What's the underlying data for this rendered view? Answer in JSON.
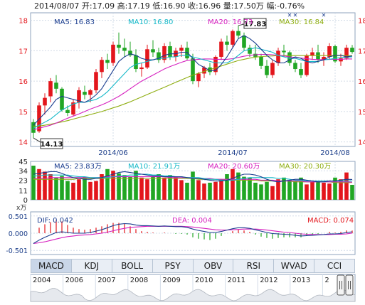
{
  "header": {
    "date": "2014/08/07",
    "open_label": "开:",
    "open": "17.09",
    "high_label": "高:",
    "high": "17.19",
    "low_label": "低:",
    "low": "16.90",
    "close_label": "收:",
    "close": "16.96",
    "volume_label": "量:",
    "volume": "17.50万",
    "change_label": "幅:",
    "change": "-0.76%"
  },
  "price_ma_legend": [
    {
      "label": "MA5:",
      "value": "16.83",
      "color": "#1a3d8f"
    },
    {
      "label": "MA10:",
      "value": "16.80",
      "color": "#14b8c8"
    },
    {
      "label": "MA20:",
      "value": "16.73",
      "color": "#d61fbf"
    },
    {
      "label": "MA30:",
      "value": "16.84",
      "color": "#8fae12"
    }
  ],
  "volume_ma_legend": [
    {
      "label": "MA5:",
      "value": "23.83万",
      "color": "#1a3d8f"
    },
    {
      "label": "MA10:",
      "value": "21.91万",
      "color": "#14b8c8"
    },
    {
      "label": "MA20:",
      "value": "20.60万",
      "color": "#d61fbf"
    },
    {
      "label": "MA30:",
      "value": "20.30万",
      "color": "#8fae12"
    }
  ],
  "macd_legend": {
    "dif_label": "DIF:",
    "dif": "0.042",
    "dea_label": "DEA:",
    "dea": "0.004",
    "macd_label": "MACD:",
    "macd": "0.074"
  },
  "annotations": {
    "max_label": "17.83",
    "min_label": "14.13"
  },
  "volume_unit": "x万",
  "tabs": [
    "MACD",
    "KDJ",
    "BOLL",
    "PSY",
    "OBV",
    "RSI",
    "WVAD",
    "CCI"
  ],
  "active_tab": "MACD",
  "navigator_years": [
    "2004",
    "2006",
    "2007",
    "2008",
    "2009",
    "2010",
    "2011",
    "2012",
    "2013",
    "2"
  ],
  "colors": {
    "up": "#e3161c",
    "down": "#21a624",
    "grid": "#d3dce8",
    "frame": "#8fa3bd",
    "axis_text": "#1d3f8a"
  },
  "chart_data": [
    {
      "type": "candlestick",
      "x_tick_labels": [
        "2014/06",
        "2014/07",
        "2014/08"
      ],
      "y_ticks": [
        14,
        15,
        16,
        17,
        18
      ],
      "ylim": [
        13.85,
        18.25
      ],
      "ohlc": [
        [
          14.65,
          14.75,
          14.13,
          14.3
        ],
        [
          14.35,
          15.3,
          14.3,
          15.2
        ],
        [
          15.2,
          15.6,
          14.9,
          15.45
        ],
        [
          15.5,
          16.1,
          15.3,
          16.0
        ],
        [
          15.95,
          16.2,
          15.6,
          15.75
        ],
        [
          15.75,
          15.8,
          15.0,
          15.05
        ],
        [
          15.05,
          15.2,
          14.85,
          14.95
        ],
        [
          14.9,
          15.4,
          14.85,
          15.3
        ],
        [
          15.3,
          15.8,
          15.1,
          15.7
        ],
        [
          15.65,
          15.85,
          15.4,
          15.55
        ],
        [
          15.55,
          15.75,
          15.3,
          15.7
        ],
        [
          15.7,
          16.4,
          15.6,
          16.3
        ],
        [
          16.3,
          16.8,
          16.1,
          16.7
        ],
        [
          16.7,
          16.9,
          16.4,
          16.6
        ],
        [
          16.6,
          17.3,
          16.5,
          17.2
        ],
        [
          17.2,
          17.6,
          16.9,
          17.1
        ],
        [
          17.1,
          17.4,
          16.8,
          17.0
        ],
        [
          17.0,
          17.3,
          16.8,
          16.85
        ],
        [
          16.85,
          17.05,
          16.3,
          16.4
        ],
        [
          16.4,
          16.6,
          16.15,
          16.45
        ],
        [
          16.45,
          17.2,
          16.4,
          17.05
        ],
        [
          17.05,
          17.35,
          16.8,
          16.95
        ],
        [
          16.95,
          17.1,
          16.6,
          16.7
        ],
        [
          16.7,
          17.25,
          16.6,
          17.15
        ],
        [
          17.15,
          17.3,
          16.7,
          16.8
        ],
        [
          16.8,
          17.1,
          16.65,
          17.0
        ],
        [
          17.0,
          17.2,
          16.8,
          17.1
        ],
        [
          17.1,
          17.3,
          16.7,
          16.75
        ],
        [
          16.75,
          16.9,
          15.9,
          16.0
        ],
        [
          16.0,
          16.3,
          15.8,
          16.25
        ],
        [
          16.25,
          16.5,
          16.1,
          16.45
        ],
        [
          16.45,
          16.6,
          16.2,
          16.3
        ],
        [
          16.3,
          16.85,
          16.2,
          16.8
        ],
        [
          16.8,
          17.4,
          16.7,
          17.3
        ],
        [
          17.3,
          17.5,
          17.0,
          17.2
        ],
        [
          17.2,
          17.7,
          17.1,
          17.65
        ],
        [
          17.65,
          17.83,
          17.4,
          17.5
        ],
        [
          17.5,
          17.6,
          17.0,
          17.1
        ],
        [
          17.1,
          17.2,
          16.8,
          16.9
        ],
        [
          16.9,
          17.2,
          16.7,
          16.8
        ],
        [
          16.8,
          16.9,
          16.4,
          16.5
        ],
        [
          16.5,
          16.7,
          16.1,
          16.2
        ],
        [
          16.2,
          16.7,
          16.1,
          16.6
        ],
        [
          16.6,
          17.1,
          16.5,
          17.0
        ],
        [
          17.0,
          17.2,
          16.8,
          16.95
        ],
        [
          16.95,
          17.0,
          16.5,
          16.6
        ],
        [
          16.6,
          16.7,
          16.3,
          16.4
        ],
        [
          16.4,
          16.6,
          16.1,
          16.2
        ],
        [
          16.2,
          16.9,
          16.15,
          16.85
        ],
        [
          16.85,
          17.1,
          16.7,
          16.95
        ],
        [
          16.95,
          17.2,
          16.6,
          16.7
        ],
        [
          16.7,
          16.95,
          16.5,
          16.8
        ],
        [
          16.8,
          17.25,
          16.7,
          17.15
        ],
        [
          17.15,
          17.2,
          16.6,
          16.65
        ],
        [
          16.65,
          16.9,
          16.5,
          16.75
        ],
        [
          16.75,
          17.2,
          16.7,
          17.1
        ],
        [
          17.1,
          17.19,
          16.9,
          16.96
        ]
      ],
      "ma5": [
        14.55,
        14.75,
        14.95,
        15.15,
        15.4,
        15.5,
        15.45,
        15.4,
        15.35,
        15.3,
        15.4,
        15.55,
        15.75,
        16.05,
        16.35,
        16.65,
        16.8,
        16.9,
        16.85,
        16.75,
        16.7,
        16.7,
        16.75,
        16.85,
        16.9,
        16.9,
        16.95,
        16.95,
        16.75,
        16.55,
        16.45,
        16.35,
        16.35,
        16.55,
        16.8,
        17.1,
        17.4,
        17.5,
        17.4,
        17.25,
        17.05,
        16.85,
        16.7,
        16.6,
        16.6,
        16.7,
        16.8,
        16.75,
        16.65,
        16.6,
        16.65,
        16.7,
        16.8,
        16.85,
        16.85,
        16.8,
        16.83
      ],
      "ma10": [
        14.45,
        14.55,
        14.65,
        14.75,
        14.9,
        15.05,
        15.15,
        15.25,
        15.3,
        15.3,
        15.35,
        15.4,
        15.5,
        15.65,
        15.85,
        16.05,
        16.25,
        16.45,
        16.55,
        16.6,
        16.65,
        16.7,
        16.75,
        16.75,
        16.8,
        16.8,
        16.85,
        16.85,
        16.8,
        16.75,
        16.7,
        16.65,
        16.6,
        16.6,
        16.6,
        16.7,
        16.85,
        17.0,
        17.05,
        17.1,
        17.05,
        17.0,
        16.95,
        16.85,
        16.8,
        16.75,
        16.75,
        16.7,
        16.65,
        16.65,
        16.65,
        16.7,
        16.72,
        16.75,
        16.78,
        16.79,
        16.8
      ],
      "ma20": [
        14.4,
        14.45,
        14.5,
        14.55,
        14.62,
        14.7,
        14.78,
        14.85,
        14.92,
        15.0,
        15.08,
        15.15,
        15.22,
        15.3,
        15.4,
        15.5,
        15.62,
        15.75,
        15.88,
        16.0,
        16.1,
        16.2,
        16.3,
        16.4,
        16.48,
        16.55,
        16.62,
        16.68,
        16.7,
        16.72,
        16.73,
        16.73,
        16.72,
        16.72,
        16.72,
        16.74,
        16.78,
        16.82,
        16.85,
        16.87,
        16.88,
        16.88,
        16.87,
        16.85,
        16.83,
        16.8,
        16.78,
        16.76,
        16.74,
        16.72,
        16.71,
        16.71,
        16.72,
        16.72,
        16.72,
        16.73,
        16.73
      ],
      "ma30": [
        14.5,
        14.52,
        14.55,
        14.58,
        14.62,
        14.66,
        14.7,
        14.75,
        14.8,
        14.85,
        14.9,
        14.95,
        15.0,
        15.06,
        15.12,
        15.18,
        15.25,
        15.32,
        15.4,
        15.48,
        15.56,
        15.64,
        15.72,
        15.8,
        15.88,
        15.96,
        16.04,
        16.12,
        16.2,
        16.26,
        16.32,
        16.38,
        16.44,
        16.5,
        16.56,
        16.62,
        16.68,
        16.72,
        16.76,
        16.79,
        16.81,
        16.82,
        16.83,
        16.84,
        16.84,
        16.84,
        16.84,
        16.84,
        16.84,
        16.84,
        16.84,
        16.84,
        16.84,
        16.84,
        16.84,
        16.84,
        16.84
      ],
      "marker_x_indices": [
        45,
        46,
        51
      ]
    },
    {
      "type": "bar",
      "y_ticks": [
        0,
        11,
        23,
        34,
        45
      ],
      "ylim": [
        0,
        45
      ],
      "values": [
        40,
        36,
        33,
        30,
        26,
        28,
        22,
        20,
        24,
        27,
        21,
        22,
        30,
        36,
        34,
        31,
        29,
        27,
        34,
        26,
        24,
        27,
        30,
        26,
        29,
        27,
        23,
        20,
        33,
        23,
        19,
        20,
        21,
        24,
        30,
        36,
        32,
        27,
        26,
        20,
        18,
        21,
        16,
        24,
        26,
        23,
        22,
        26,
        18,
        21,
        22,
        20,
        19,
        26,
        24,
        32,
        17.5
      ],
      "ma5": [
        30,
        31,
        32,
        33,
        33,
        31,
        28,
        26,
        25,
        24,
        24,
        25,
        26,
        28,
        30,
        32,
        33,
        32,
        31,
        30,
        29,
        28,
        28,
        27,
        27,
        27,
        27,
        26,
        25,
        25,
        24,
        23,
        22,
        22,
        23,
        25,
        28,
        30,
        30,
        29,
        27,
        24,
        22,
        21,
        22,
        23,
        24,
        24,
        23,
        22,
        21,
        21,
        22,
        22,
        23,
        24,
        23.83
      ],
      "ma10": [
        28,
        28,
        29,
        29,
        29,
        29,
        29,
        28,
        27,
        27,
        26,
        26,
        26,
        26,
        27,
        28,
        28,
        29,
        29,
        30,
        30,
        29,
        29,
        28,
        28,
        27,
        27,
        26,
        26,
        26,
        25,
        24,
        24,
        23,
        23,
        23,
        24,
        25,
        26,
        26,
        26,
        26,
        26,
        25,
        25,
        24,
        23,
        23,
        22,
        22,
        22,
        22,
        22,
        22,
        22,
        22,
        21.91
      ],
      "ma20": [
        25,
        25,
        25,
        26,
        26,
        26,
        26,
        26,
        26,
        26,
        26,
        26,
        26,
        27,
        27,
        27,
        27,
        27,
        27,
        27,
        27,
        27,
        27,
        27,
        26,
        26,
        26,
        26,
        26,
        25,
        25,
        25,
        24,
        24,
        24,
        24,
        24,
        24,
        24,
        24,
        23,
        23,
        23,
        22,
        22,
        22,
        22,
        22,
        21,
        21,
        21,
        21,
        21,
        21,
        21,
        21,
        20.6
      ],
      "ma30": [
        24,
        24,
        24,
        24,
        24,
        24,
        24,
        24,
        25,
        25,
        25,
        25,
        25,
        25,
        25,
        25,
        25,
        25,
        25,
        25,
        25,
        25,
        25,
        25,
        25,
        25,
        25,
        25,
        25,
        24,
        24,
        24,
        24,
        24,
        23,
        23,
        23,
        23,
        23,
        23,
        22,
        22,
        22,
        22,
        22,
        22,
        21,
        21,
        21,
        21,
        21,
        21,
        21,
        20,
        20,
        20,
        20.3
      ]
    },
    {
      "type": "line",
      "y_ticks": [
        0.501,
        0.0,
        -0.501
      ],
      "ylim": [
        -0.62,
        0.62
      ],
      "dif": [
        -0.3,
        -0.2,
        -0.12,
        -0.05,
        0.02,
        0.04,
        0.02,
        0.0,
        0.0,
        0.0,
        0.02,
        0.06,
        0.1,
        0.16,
        0.22,
        0.26,
        0.28,
        0.27,
        0.24,
        0.22,
        0.22,
        0.21,
        0.2,
        0.21,
        0.2,
        0.19,
        0.19,
        0.17,
        0.12,
        0.08,
        0.05,
        0.02,
        0.02,
        0.05,
        0.09,
        0.13,
        0.16,
        0.16,
        0.14,
        0.1,
        0.06,
        0.02,
        -0.01,
        -0.02,
        -0.03,
        -0.04,
        -0.06,
        -0.08,
        -0.07,
        -0.06,
        -0.05,
        -0.04,
        -0.02,
        -0.02,
        -0.01,
        0.02,
        0.042
      ],
      "dea": [
        -0.3,
        -0.28,
        -0.25,
        -0.21,
        -0.17,
        -0.13,
        -0.1,
        -0.08,
        -0.06,
        -0.05,
        -0.04,
        -0.02,
        0.0,
        0.03,
        0.07,
        0.11,
        0.14,
        0.17,
        0.18,
        0.19,
        0.2,
        0.2,
        0.2,
        0.2,
        0.2,
        0.2,
        0.2,
        0.19,
        0.18,
        0.16,
        0.14,
        0.12,
        0.1,
        0.09,
        0.09,
        0.1,
        0.11,
        0.12,
        0.12,
        0.12,
        0.11,
        0.09,
        0.07,
        0.05,
        0.03,
        0.02,
        0.0,
        -0.02,
        -0.03,
        -0.04,
        -0.04,
        -0.04,
        -0.04,
        -0.03,
        -0.03,
        -0.02,
        0.004
      ]
    }
  ]
}
